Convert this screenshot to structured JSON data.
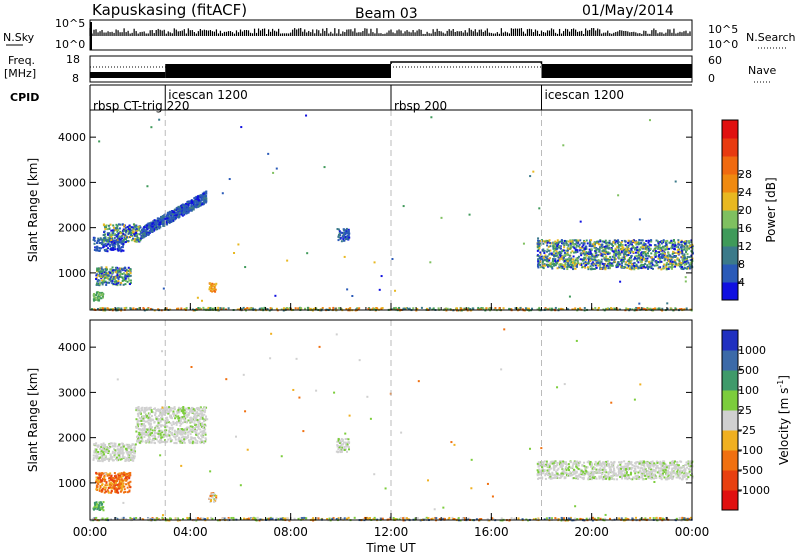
{
  "header": {
    "station": "Kapuskasing (fitACF)",
    "beam": "Beam 03",
    "date": "01/May/2014"
  },
  "top_panels": {
    "nsky_label": "N.Sky",
    "nsky_ticks": [
      "10^5",
      "10^0"
    ],
    "nsearch_ticks": [
      "10^5",
      "10^0"
    ],
    "nsearch_label": "N.Search",
    "freq_label_1": "Freq.",
    "freq_label_2": "[MHz]",
    "freq_ticks": [
      "18",
      "8"
    ],
    "nave_ticks": [
      "60",
      "0"
    ],
    "nave_label": "Nave",
    "cpid_label": "CPID",
    "cpid_segments": [
      {
        "label": "rbsp CT-trig 220",
        "start_hour": 0.0,
        "row": "low"
      },
      {
        "label": "icescan 1200",
        "start_hour": 3.0,
        "row": "high"
      },
      {
        "label": "rbsp 200",
        "start_hour": 12.0,
        "row": "low"
      },
      {
        "label": "icescan 1200",
        "start_hour": 18.0,
        "row": "high"
      }
    ]
  },
  "x_axis": {
    "label": "Time UT",
    "ticks": [
      "00:00",
      "04:00",
      "08:00",
      "12:00",
      "16:00",
      "20:00",
      "00:00"
    ],
    "tick_hours": [
      0,
      4,
      8,
      12,
      16,
      20,
      24
    ],
    "range_hours": [
      0,
      24
    ]
  },
  "colorbars": {
    "power": {
      "label": "Power [dB]",
      "tick_labels": [
        "4",
        "8",
        "12",
        "16",
        "20",
        "24",
        "28"
      ],
      "colors": [
        "#1010e0",
        "#2a5ab8",
        "#3b7a8a",
        "#3f9a5a",
        "#7fc060",
        "#e8b820",
        "#f08a10",
        "#f06a10",
        "#e83a10",
        "#e01010"
      ]
    },
    "velocity": {
      "label": "Velocity [m s",
      "label_superscript": "-1",
      "label_close": "]",
      "tick_labels": [
        "1000",
        "500",
        "100",
        "25",
        "-25",
        "-100",
        "-500",
        "-1000"
      ],
      "colors": [
        "#2030c0",
        "#3c6aa8",
        "#3f9a6a",
        "#7ccd3c",
        "#d0d0d0",
        "#f0b020",
        "#f07010",
        "#e84010",
        "#e01010"
      ]
    }
  },
  "chart_data": [
    {
      "type": "heatmap",
      "panel": "power",
      "ylabel": "Slant Range [km]",
      "xlabel": "",
      "ylim": [
        180,
        4600
      ],
      "y_ticks": [
        1000,
        2000,
        3000,
        4000
      ],
      "xlim": [
        0,
        24
      ],
      "cpid_change_hours": [
        3.0,
        12.0,
        18.0
      ],
      "regions": [
        {
          "t": [
            0.1,
            1.3
          ],
          "r": [
            1500,
            1800
          ],
          "value": "low"
        },
        {
          "t": [
            0.5,
            2.0
          ],
          "r": [
            1700,
            2100
          ],
          "value": "mixed"
        },
        {
          "t": [
            2.0,
            4.6
          ],
          "r": [
            1900,
            2700
          ],
          "value": "low"
        },
        {
          "t": [
            0.2,
            1.6
          ],
          "r": [
            750,
            1150
          ],
          "value": "mixed"
        },
        {
          "t": [
            0.1,
            0.5
          ],
          "r": [
            400,
            600
          ],
          "value": "mid"
        },
        {
          "t": [
            4.7,
            5.0
          ],
          "r": [
            600,
            800
          ],
          "value": "high"
        },
        {
          "t": [
            9.8,
            10.3
          ],
          "r": [
            1700,
            2000
          ],
          "value": "low"
        },
        {
          "t": [
            17.8,
            24.0
          ],
          "r": [
            1100,
            1750
          ],
          "value": "mixed"
        },
        {
          "t": [
            0.0,
            24.0
          ],
          "r": [
            190,
            250
          ],
          "value": "ground"
        }
      ]
    },
    {
      "type": "heatmap",
      "panel": "velocity",
      "ylabel": "Slant Range [km]",
      "xlabel": "Time UT",
      "ylim": [
        180,
        4600
      ],
      "y_ticks": [
        1000,
        2000,
        3000,
        4000
      ],
      "xlim": [
        0,
        24
      ],
      "cpid_change_hours": [
        3.0,
        12.0,
        18.0
      ],
      "regions": [
        {
          "t": [
            0.1,
            1.8
          ],
          "r": [
            1500,
            1900
          ],
          "value": "grey"
        },
        {
          "t": [
            1.8,
            4.6
          ],
          "r": [
            1900,
            2700
          ],
          "value": "grey"
        },
        {
          "t": [
            0.2,
            1.6
          ],
          "r": [
            800,
            1250
          ],
          "value": "orange"
        },
        {
          "t": [
            0.1,
            0.5
          ],
          "r": [
            400,
            600
          ],
          "value": "green"
        },
        {
          "t": [
            4.7,
            5.0
          ],
          "r": [
            600,
            800
          ],
          "value": "mixed"
        },
        {
          "t": [
            9.8,
            10.3
          ],
          "r": [
            1700,
            2000
          ],
          "value": "grey"
        },
        {
          "t": [
            17.8,
            24.0
          ],
          "r": [
            1100,
            1500
          ],
          "value": "grey"
        },
        {
          "t": [
            0.0,
            24.0
          ],
          "r": [
            190,
            250
          ],
          "value": "ground"
        }
      ]
    }
  ]
}
